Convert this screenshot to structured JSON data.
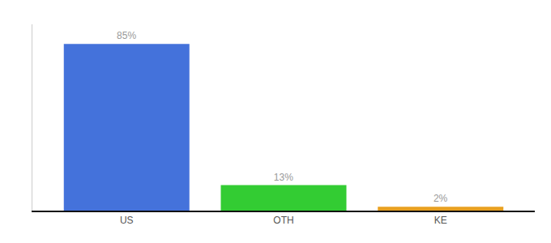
{
  "chart_data": {
    "type": "bar",
    "categories": [
      "US",
      "OTH",
      "KE"
    ],
    "values": [
      85,
      13,
      2
    ],
    "value_labels": [
      "85%",
      "13%",
      "2%"
    ],
    "colors": [
      "#4472db",
      "#33cc33",
      "#e8a020"
    ],
    "ylim": [
      0,
      95
    ],
    "data_labels": true,
    "tick_labels": "x",
    "grid": false
  }
}
